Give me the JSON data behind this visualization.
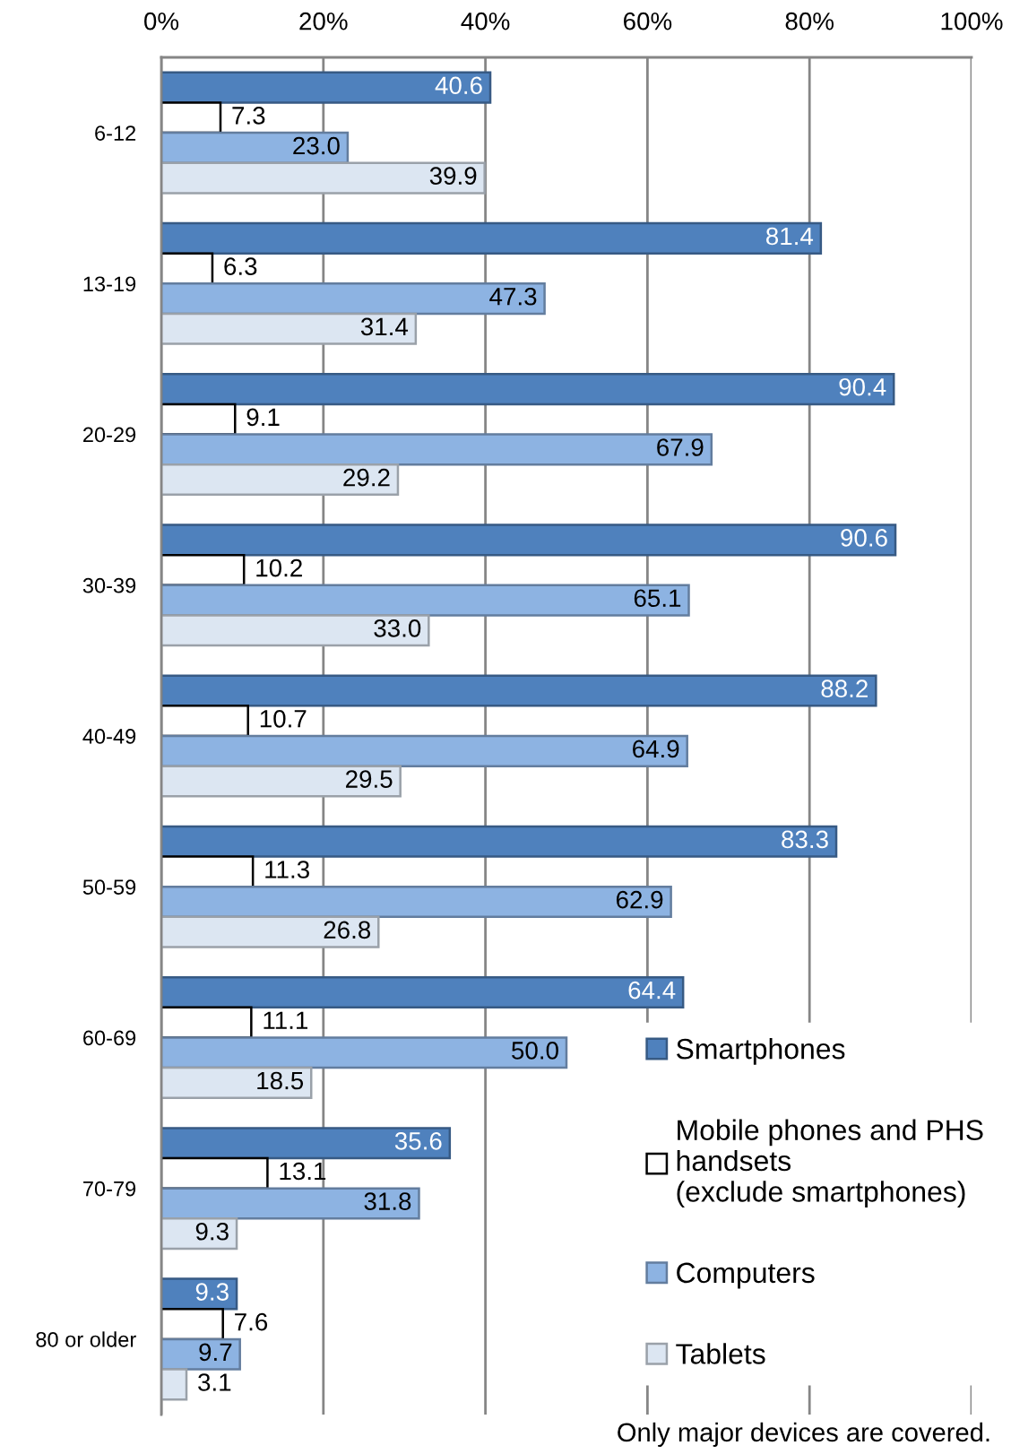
{
  "chart_data": {
    "type": "bar",
    "orientation": "horizontal",
    "categories": [
      "6-12",
      "13-19",
      "20-29",
      "30-39",
      "40-49",
      "50-59",
      "60-69",
      "70-79",
      "80 or older"
    ],
    "series": [
      {
        "name": "Smartphones",
        "color": "#4f81bd",
        "values": [
          40.6,
          81.4,
          90.4,
          90.6,
          88.2,
          83.3,
          64.4,
          35.6,
          9.3
        ],
        "value_labels": [
          "40.6",
          "81.4",
          "90.4",
          "90.6",
          "88.2",
          "83.3",
          "64.4",
          "35.6",
          "9.3"
        ]
      },
      {
        "name": "Mobile phones and PHS\nhandsets\n(exclude smartphones)",
        "color": "#ffffff",
        "values": [
          7.3,
          6.3,
          9.1,
          10.2,
          10.7,
          11.3,
          11.1,
          13.1,
          7.6
        ],
        "value_labels": [
          "7.3",
          "6.3",
          "9.1",
          "10.2",
          "10.7",
          "11.3",
          "11.1",
          "13.1",
          "7.6"
        ]
      },
      {
        "name": "Computers",
        "color": "#8db3e2",
        "values": [
          23.0,
          47.3,
          67.9,
          65.1,
          64.9,
          62.9,
          50.0,
          31.8,
          9.7
        ],
        "value_labels": [
          "23.0",
          "47.3",
          "67.9",
          "65.1",
          "64.9",
          "62.9",
          "50.0",
          "31.8",
          "9.7"
        ]
      },
      {
        "name": "Tablets",
        "color": "#dce6f2",
        "values": [
          39.9,
          31.4,
          29.2,
          33.0,
          29.5,
          26.8,
          18.5,
          9.3,
          3.1
        ],
        "value_labels": [
          "39.9",
          "31.4",
          "29.2",
          "33.0",
          "29.5",
          "26.8",
          "18.5",
          "9.3",
          "3.1"
        ]
      }
    ],
    "xlim": [
      0,
      100
    ],
    "xticks": [
      {
        "value": 0,
        "label": "0%"
      },
      {
        "value": 20,
        "label": "20%"
      },
      {
        "value": 40,
        "label": "40%"
      },
      {
        "value": 60,
        "label": "60%"
      },
      {
        "value": 80,
        "label": "80%"
      },
      {
        "value": 100,
        "label": "100%"
      }
    ],
    "grid": "x",
    "legend": "bottom right",
    "annotations": [
      "Only major devices are covered."
    ]
  }
}
